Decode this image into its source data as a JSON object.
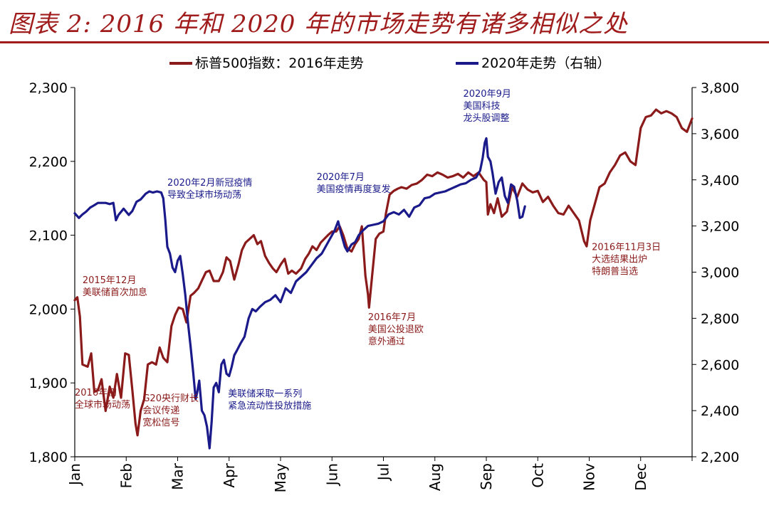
{
  "title": "图表 2: 2016 年和 2020 年的市场走势有诸多相似之处",
  "colors": {
    "series_2016": "#8b1a1a",
    "series_2020": "#1a1a8b",
    "title": "#a01c1c"
  },
  "chart_data": {
    "type": "line",
    "x_labels": [
      "Jan",
      "Feb",
      "Mar",
      "Apr",
      "May",
      "Jun",
      "Jul",
      "Aug",
      "Sep",
      "Oct",
      "Nov",
      "Dec"
    ],
    "y_left": {
      "ticks": [
        "1,800",
        "1,900",
        "2,000",
        "2,100",
        "2,200",
        "2,300"
      ],
      "min": 1800,
      "max": 2300
    },
    "y_right": {
      "ticks": [
        "2,200",
        "2,400",
        "2,600",
        "2,800",
        "3,000",
        "3,200",
        "3,400",
        "3,600",
        "3,800"
      ],
      "min": 2200,
      "max": 3800
    },
    "legend_position": "top",
    "series": [
      {
        "name": "标普500指数：2016年走势",
        "axis": "left",
        "color": "#8b1a1a",
        "points": [
          [
            0.0,
            2012
          ],
          [
            0.05,
            2016
          ],
          [
            0.1,
            1990
          ],
          [
            0.15,
            1925
          ],
          [
            0.25,
            1922
          ],
          [
            0.32,
            1940
          ],
          [
            0.38,
            1888
          ],
          [
            0.45,
            1890
          ],
          [
            0.52,
            1905
          ],
          [
            0.6,
            1862
          ],
          [
            0.68,
            1895
          ],
          [
            0.75,
            1880
          ],
          [
            0.82,
            1912
          ],
          [
            0.9,
            1880
          ],
          [
            0.98,
            1940
          ],
          [
            1.05,
            1938
          ],
          [
            1.12,
            1890
          ],
          [
            1.18,
            1845
          ],
          [
            1.22,
            1829
          ],
          [
            1.28,
            1862
          ],
          [
            1.35,
            1878
          ],
          [
            1.42,
            1925
          ],
          [
            1.5,
            1928
          ],
          [
            1.58,
            1925
          ],
          [
            1.65,
            1948
          ],
          [
            1.72,
            1934
          ],
          [
            1.8,
            1928
          ],
          [
            1.88,
            1977
          ],
          [
            1.95,
            1992
          ],
          [
            2.02,
            2002
          ],
          [
            2.1,
            2000
          ],
          [
            2.17,
            1982
          ],
          [
            2.25,
            2018
          ],
          [
            2.32,
            2022
          ],
          [
            2.4,
            2028
          ],
          [
            2.48,
            2040
          ],
          [
            2.55,
            2050
          ],
          [
            2.62,
            2052
          ],
          [
            2.7,
            2038
          ],
          [
            2.8,
            2038
          ],
          [
            2.88,
            2050
          ],
          [
            2.95,
            2070
          ],
          [
            3.02,
            2065
          ],
          [
            3.1,
            2040
          ],
          [
            3.18,
            2060
          ],
          [
            3.25,
            2080
          ],
          [
            3.32,
            2090
          ],
          [
            3.4,
            2095
          ],
          [
            3.48,
            2100
          ],
          [
            3.55,
            2088
          ],
          [
            3.62,
            2092
          ],
          [
            3.7,
            2072
          ],
          [
            3.78,
            2062
          ],
          [
            3.85,
            2055
          ],
          [
            3.92,
            2050
          ],
          [
            4.0,
            2060
          ],
          [
            4.08,
            2068
          ],
          [
            4.15,
            2048
          ],
          [
            4.22,
            2052
          ],
          [
            4.3,
            2048
          ],
          [
            4.4,
            2055
          ],
          [
            4.48,
            2068
          ],
          [
            4.55,
            2075
          ],
          [
            4.62,
            2085
          ],
          [
            4.7,
            2080
          ],
          [
            4.78,
            2090
          ],
          [
            4.85,
            2095
          ],
          [
            4.92,
            2100
          ],
          [
            5.0,
            2105
          ],
          [
            5.08,
            2105
          ],
          [
            5.15,
            2112
          ],
          [
            5.22,
            2100
          ],
          [
            5.3,
            2082
          ],
          [
            5.38,
            2078
          ],
          [
            5.45,
            2088
          ],
          [
            5.52,
            2095
          ],
          [
            5.58,
            2112
          ],
          [
            5.65,
            2045
          ],
          [
            5.7,
            2020
          ],
          [
            5.72,
            2002
          ],
          [
            5.78,
            2045
          ],
          [
            5.85,
            2095
          ],
          [
            5.92,
            2102
          ],
          [
            6.0,
            2105
          ],
          [
            6.05,
            2130
          ],
          [
            6.12,
            2155
          ],
          [
            6.2,
            2160
          ],
          [
            6.28,
            2163
          ],
          [
            6.35,
            2165
          ],
          [
            6.45,
            2163
          ],
          [
            6.55,
            2168
          ],
          [
            6.65,
            2170
          ],
          [
            6.75,
            2175
          ],
          [
            6.85,
            2182
          ],
          [
            6.95,
            2180
          ],
          [
            7.05,
            2185
          ],
          [
            7.15,
            2182
          ],
          [
            7.25,
            2178
          ],
          [
            7.35,
            2180
          ],
          [
            7.45,
            2183
          ],
          [
            7.55,
            2178
          ],
          [
            7.65,
            2185
          ],
          [
            7.75,
            2180
          ],
          [
            7.85,
            2185
          ],
          [
            7.95,
            2175
          ],
          [
            8.0,
            2172
          ],
          [
            8.03,
            2128
          ],
          [
            8.08,
            2142
          ],
          [
            8.15,
            2130
          ],
          [
            8.22,
            2150
          ],
          [
            8.3,
            2125
          ],
          [
            8.4,
            2132
          ],
          [
            8.5,
            2165
          ],
          [
            8.6,
            2152
          ],
          [
            8.7,
            2170
          ],
          [
            8.8,
            2162
          ],
          [
            8.9,
            2158
          ],
          [
            9.0,
            2160
          ],
          [
            9.1,
            2145
          ],
          [
            9.2,
            2152
          ],
          [
            9.3,
            2140
          ],
          [
            9.4,
            2130
          ],
          [
            9.5,
            2128
          ],
          [
            9.6,
            2140
          ],
          [
            9.7,
            2130
          ],
          [
            9.8,
            2120
          ],
          [
            9.9,
            2092
          ],
          [
            9.95,
            2085
          ],
          [
            10.02,
            2120
          ],
          [
            10.1,
            2140
          ],
          [
            10.2,
            2165
          ],
          [
            10.3,
            2170
          ],
          [
            10.4,
            2185
          ],
          [
            10.5,
            2195
          ],
          [
            10.6,
            2208
          ],
          [
            10.7,
            2212
          ],
          [
            10.8,
            2200
          ],
          [
            10.9,
            2195
          ],
          [
            11.0,
            2245
          ],
          [
            11.1,
            2260
          ],
          [
            11.2,
            2262
          ],
          [
            11.3,
            2270
          ],
          [
            11.4,
            2265
          ],
          [
            11.5,
            2268
          ],
          [
            11.6,
            2265
          ],
          [
            11.7,
            2260
          ],
          [
            11.8,
            2245
          ],
          [
            11.9,
            2240
          ],
          [
            12.0,
            2258
          ]
        ]
      },
      {
        "name": "2020年走势（右轴）",
        "axis": "right",
        "color": "#1a1a8b",
        "points": [
          [
            0.0,
            3255
          ],
          [
            0.08,
            3235
          ],
          [
            0.15,
            3250
          ],
          [
            0.22,
            3262
          ],
          [
            0.3,
            3280
          ],
          [
            0.38,
            3290
          ],
          [
            0.45,
            3300
          ],
          [
            0.52,
            3300
          ],
          [
            0.6,
            3300
          ],
          [
            0.68,
            3295
          ],
          [
            0.75,
            3300
          ],
          [
            0.8,
            3225
          ],
          [
            0.85,
            3248
          ],
          [
            0.95,
            3275
          ],
          [
            1.05,
            3248
          ],
          [
            1.12,
            3265
          ],
          [
            1.2,
            3305
          ],
          [
            1.28,
            3315
          ],
          [
            1.38,
            3340
          ],
          [
            1.45,
            3350
          ],
          [
            1.52,
            3345
          ],
          [
            1.6,
            3350
          ],
          [
            1.68,
            3345
          ],
          [
            1.72,
            3320
          ],
          [
            1.76,
            3225
          ],
          [
            1.8,
            3110
          ],
          [
            1.85,
            3080
          ],
          [
            1.9,
            3020
          ],
          [
            1.95,
            3000
          ],
          [
            2.0,
            3050
          ],
          [
            2.05,
            3070
          ],
          [
            2.1,
            2990
          ],
          [
            2.15,
            2900
          ],
          [
            2.2,
            2780
          ],
          [
            2.25,
            2680
          ],
          [
            2.3,
            2570
          ],
          [
            2.35,
            2450
          ],
          [
            2.38,
            2480
          ],
          [
            2.42,
            2530
          ],
          [
            2.47,
            2400
          ],
          [
            2.52,
            2380
          ],
          [
            2.57,
            2330
          ],
          [
            2.62,
            2237
          ],
          [
            2.66,
            2350
          ],
          [
            2.7,
            2500
          ],
          [
            2.75,
            2520
          ],
          [
            2.8,
            2480
          ],
          [
            2.85,
            2600
          ],
          [
            2.9,
            2620
          ],
          [
            2.95,
            2560
          ],
          [
            3.0,
            2550
          ],
          [
            3.05,
            2590
          ],
          [
            3.1,
            2640
          ],
          [
            3.15,
            2660
          ],
          [
            3.22,
            2690
          ],
          [
            3.3,
            2720
          ],
          [
            3.38,
            2800
          ],
          [
            3.45,
            2840
          ],
          [
            3.52,
            2830
          ],
          [
            3.6,
            2850
          ],
          [
            3.7,
            2870
          ],
          [
            3.8,
            2880
          ],
          [
            3.9,
            2900
          ],
          [
            4.0,
            2870
          ],
          [
            4.1,
            2930
          ],
          [
            4.2,
            2910
          ],
          [
            4.3,
            2960
          ],
          [
            4.4,
            2980
          ],
          [
            4.5,
            3000
          ],
          [
            4.6,
            3030
          ],
          [
            4.7,
            3060
          ],
          [
            4.8,
            3080
          ],
          [
            4.85,
            3100
          ],
          [
            4.95,
            3140
          ],
          [
            5.05,
            3180
          ],
          [
            5.12,
            3220
          ],
          [
            5.18,
            3165
          ],
          [
            5.25,
            3110
          ],
          [
            5.3,
            3090
          ],
          [
            5.38,
            3120
          ],
          [
            5.45,
            3130
          ],
          [
            5.52,
            3160
          ],
          [
            5.6,
            3180
          ],
          [
            5.7,
            3200
          ],
          [
            5.8,
            3205
          ],
          [
            5.9,
            3210
          ],
          [
            6.0,
            3220
          ],
          [
            6.1,
            3250
          ],
          [
            6.2,
            3260
          ],
          [
            6.3,
            3250
          ],
          [
            6.4,
            3270
          ],
          [
            6.5,
            3240
          ],
          [
            6.6,
            3280
          ],
          [
            6.7,
            3290
          ],
          [
            6.8,
            3320
          ],
          [
            6.9,
            3325
          ],
          [
            7.0,
            3340
          ],
          [
            7.1,
            3345
          ],
          [
            7.2,
            3350
          ],
          [
            7.3,
            3360
          ],
          [
            7.4,
            3370
          ],
          [
            7.5,
            3380
          ],
          [
            7.6,
            3385
          ],
          [
            7.7,
            3400
          ],
          [
            7.8,
            3410
          ],
          [
            7.88,
            3440
          ],
          [
            7.93,
            3495
          ],
          [
            7.97,
            3560
          ],
          [
            8.0,
            3580
          ],
          [
            8.03,
            3500
          ],
          [
            8.08,
            3480
          ],
          [
            8.12,
            3430
          ],
          [
            8.18,
            3340
          ],
          [
            8.24,
            3390
          ],
          [
            8.3,
            3410
          ],
          [
            8.36,
            3330
          ],
          [
            8.42,
            3300
          ],
          [
            8.48,
            3380
          ],
          [
            8.54,
            3370
          ],
          [
            8.6,
            3310
          ],
          [
            8.65,
            3235
          ],
          [
            8.7,
            3240
          ],
          [
            8.75,
            3285
          ]
        ]
      }
    ],
    "annotations": [
      {
        "text": "2015年12月\n美联储首次加息",
        "month": 0.15,
        "value": 2035,
        "axis": "left",
        "color": "#8b1a1a"
      },
      {
        "text": "2016年初\n全球市场动荡",
        "month": 0.0,
        "value": 1883,
        "axis": "left",
        "color": "#8b1a1a"
      },
      {
        "text": "G20央行财长\n会议传递\n宽松信号",
        "month": 1.32,
        "value": 1875,
        "axis": "left",
        "color": "#8b1a1a"
      },
      {
        "text": "2020年2月新冠疫情\n导致全球市场动荡",
        "month": 1.8,
        "value": 3375,
        "axis": "right",
        "color": "#1a1a8b"
      },
      {
        "text": "美联储采取一系列\n紧急流动性投放措施",
        "month": 2.98,
        "value": 2460,
        "axis": "right",
        "color": "#1a1a8b"
      },
      {
        "text": "2020年7月\n美国疫情再度复发",
        "month": 4.7,
        "value": 3400,
        "axis": "right",
        "color": "#1a1a8b"
      },
      {
        "text": "2016年7月\n美国公投退欧\n意外通过",
        "month": 5.7,
        "value": 1985,
        "axis": "left",
        "color": "#8b1a1a"
      },
      {
        "text": "2020年9月\n美国科技\n龙头股调整",
        "month": 7.55,
        "value": 3760,
        "axis": "right",
        "color": "#1a1a8b"
      },
      {
        "text": "2016年11月3日\n大选结果出炉\n特朗普当选",
        "month": 10.05,
        "value": 2080,
        "axis": "left",
        "color": "#8b1a1a"
      }
    ]
  }
}
